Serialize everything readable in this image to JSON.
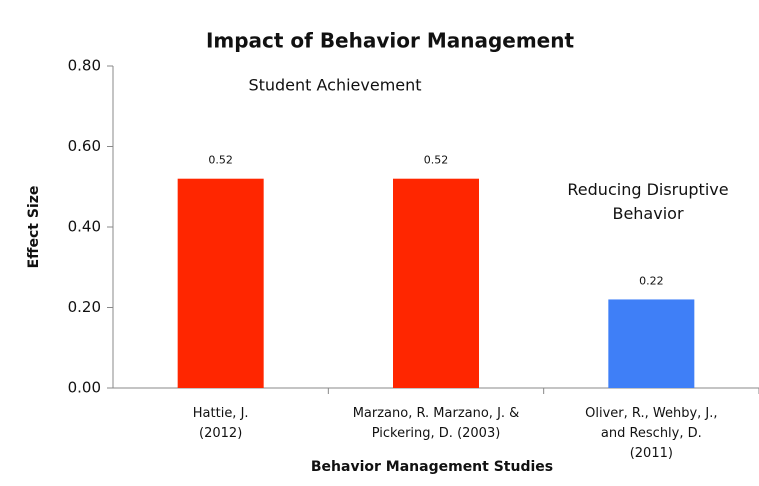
{
  "chart_data": {
    "type": "bar",
    "title": "Impact of Behavior Management",
    "xlabel": "Behavior Management Studies",
    "ylabel": "Effect Size",
    "categories": [
      "Hattie, J.\n(2012)",
      "Marzano, R. Marzano, J. &\nPickering, D. (2003)",
      "Oliver, R., Wehby, J.,\nand Reschly, D.\n(2011)"
    ],
    "values": [
      0.52,
      0.52,
      0.22
    ],
    "colors": [
      "#ff2600",
      "#ff2600",
      "#3f7ff7"
    ],
    "ylim": [
      0,
      0.8
    ],
    "yticks": [
      {
        "value": 0,
        "label": "0.00"
      },
      {
        "value": 0.2,
        "label": "0.20"
      },
      {
        "value": 0.4,
        "label": "0.40"
      },
      {
        "value": 0.6,
        "label": "0.60"
      },
      {
        "value": 0.8,
        "label": "0.80"
      }
    ],
    "annotations": [
      "Student Achievement",
      "Reducing Disruptive\nBehavior"
    ],
    "grid": false
  }
}
